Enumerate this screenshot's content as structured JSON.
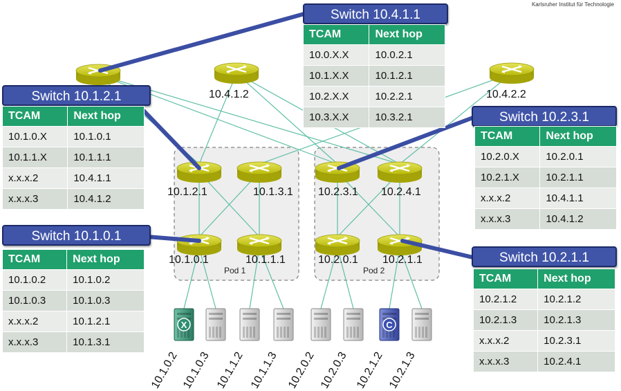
{
  "institution": "Karlsruher Institut für Technologie",
  "colors": {
    "router": "#c6c610",
    "title_bg": "#4055a8",
    "table_header": "#20a06c",
    "link": "#5fbfa6",
    "pod_bg": "#eeeeee",
    "host_infected": "#2e8f72",
    "host_controller": "#3c4fb2"
  },
  "pods": [
    "Pod 1",
    "Pod 2"
  ],
  "routers": [
    {
      "label": "",
      "icon": "router-icon"
    },
    {
      "label": "10.4.1.2",
      "icon": "router-icon"
    },
    {
      "label": "10.4.2.2",
      "icon": "router-icon"
    },
    {
      "label": "10.1.2.1",
      "icon": "router-icon"
    },
    {
      "label": "10.1.3.1",
      "icon": "router-icon"
    },
    {
      "label": "10.2.3.1",
      "icon": "router-icon"
    },
    {
      "label": "10.2.4.1",
      "icon": "router-icon"
    },
    {
      "label": "10.1.0.1",
      "icon": "router-icon"
    },
    {
      "label": "10.1.1.1",
      "icon": "router-icon"
    },
    {
      "label": "10.2.0.1",
      "icon": "router-icon"
    },
    {
      "label": "10.2.1.1",
      "icon": "router-icon"
    }
  ],
  "hosts": [
    {
      "label": "10.1.0.2",
      "badge": "X"
    },
    {
      "label": "10.1.0.3",
      "badge": ""
    },
    {
      "label": "10.1.1.2",
      "badge": ""
    },
    {
      "label": "10.1.1.3",
      "badge": ""
    },
    {
      "label": "10.2.0.2",
      "badge": ""
    },
    {
      "label": "10.2.0.3",
      "badge": ""
    },
    {
      "label": "10.2.1.2",
      "badge": "C"
    },
    {
      "label": "10.2.1.3",
      "badge": ""
    }
  ],
  "switch_tables": [
    {
      "title": "Switch 10.4.1.1",
      "headers": [
        "TCAM",
        "Next hop"
      ],
      "rows": [
        [
          "10.0.X.X",
          "10.0.2.1"
        ],
        [
          "10.1.X.X",
          "10.1.2.1"
        ],
        [
          "10.2.X.X",
          "10.2.2.1"
        ],
        [
          "10.3.X.X",
          "10.3.2.1"
        ]
      ]
    },
    {
      "title": "Switch 10.1.2.1",
      "headers": [
        "TCAM",
        "Next hop"
      ],
      "rows": [
        [
          "10.1.0.X",
          "10.1.0.1"
        ],
        [
          "10.1.1.X",
          "10.1.1.1"
        ],
        [
          "x.x.x.2",
          "10.4.1.1"
        ],
        [
          "x.x.x.3",
          "10.4.1.2"
        ]
      ]
    },
    {
      "title": "Switch 10.2.3.1",
      "headers": [
        "TCAM",
        "Next hop"
      ],
      "rows": [
        [
          "10.2.0.X",
          "10.2.0.1"
        ],
        [
          "10.2.1.X",
          "10.2.1.1"
        ],
        [
          "x.x.x.2",
          "10.4.1.1"
        ],
        [
          "x.x.x.3",
          "10.4.1.2"
        ]
      ]
    },
    {
      "title": "Switch 10.1.0.1",
      "headers": [
        "TCAM",
        "Next hop"
      ],
      "rows": [
        [
          "10.1.0.2",
          "10.1.0.2"
        ],
        [
          "10.1.0.3",
          "10.1.0.3"
        ],
        [
          "x.x.x.2",
          "10.1.2.1"
        ],
        [
          "x.x.x.3",
          "10.1.3.1"
        ]
      ]
    },
    {
      "title": "Switch 10.2.1.1",
      "headers": [
        "TCAM",
        "Next hop"
      ],
      "rows": [
        [
          "10.2.1.2",
          "10.2.1.2"
        ],
        [
          "10.2.1.3",
          "10.2.1.3"
        ],
        [
          "x.x.x.2",
          "10.2.3.1"
        ],
        [
          "x.x.x.3",
          "10.2.4.1"
        ]
      ]
    }
  ]
}
